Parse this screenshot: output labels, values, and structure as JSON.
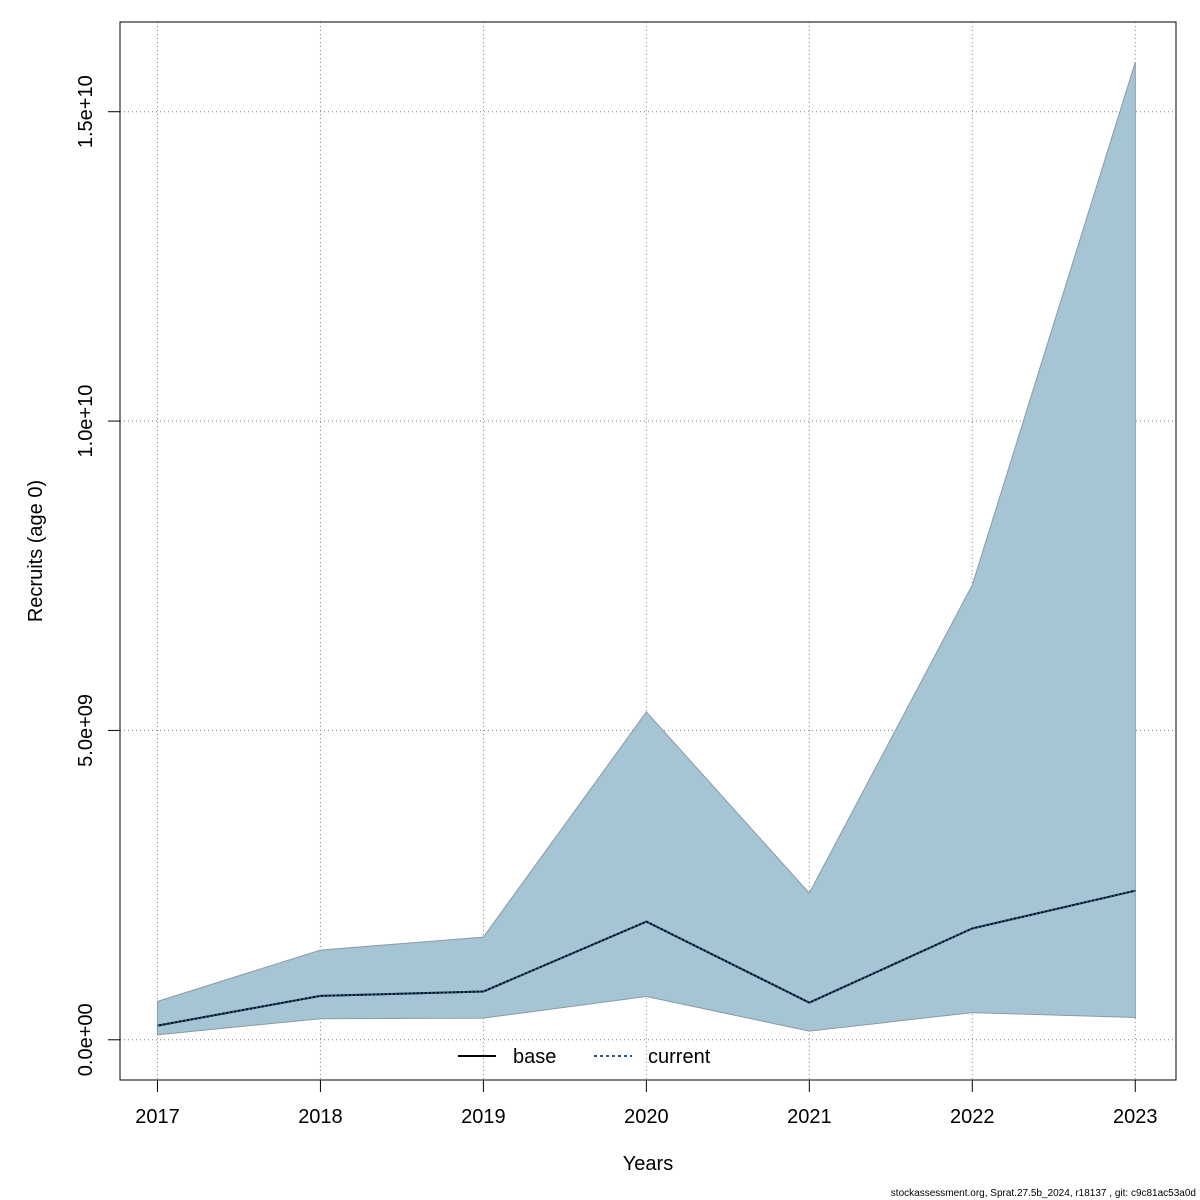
{
  "chart_data": {
    "type": "area",
    "xlabel": "Years",
    "ylabel": "Recruits (age 0)",
    "x": [
      2017,
      2018,
      2019,
      2020,
      2021,
      2022,
      2023
    ],
    "xlim": [
      2016.77,
      2023.25
    ],
    "ylim": [
      -650000000,
      16450000000
    ],
    "y_ticks": [
      0,
      5000000000,
      10000000000,
      15000000000
    ],
    "y_tick_labels": [
      "0.0e+00",
      "5.0e+09",
      "1.0e+10",
      "1.5e+10"
    ],
    "x_tick_labels": [
      "2017",
      "2018",
      "2019",
      "2020",
      "2021",
      "2022",
      "2023"
    ],
    "grid": true,
    "band": {
      "lower": [
        80000000,
        340000000,
        350000000,
        700000000,
        140000000,
        440000000,
        360000000
      ],
      "upper": [
        620000000,
        1450000000,
        1660000000,
        5300000000,
        2370000000,
        7350000000,
        15800000000
      ],
      "color": "#a5c4d4",
      "edge_color": "#8a9ba5"
    },
    "series": [
      {
        "name": "base",
        "values": [
          230000000,
          710000000,
          780000000,
          1910000000,
          600000000,
          1800000000,
          2410000000
        ],
        "color": "#000000",
        "dash": "solid"
      },
      {
        "name": "current",
        "values": [
          230000000,
          710000000,
          780000000,
          1910000000,
          600000000,
          1800000000,
          2410000000
        ],
        "color": "#1a5f8c",
        "dash": "dotted"
      }
    ],
    "legend": {
      "placement": "bottom-center",
      "entries": [
        "base",
        "current"
      ]
    }
  },
  "footer": "stockassessment.org, Sprat.27.5b_2024, r18137 , git: c9c81ac53a0d"
}
